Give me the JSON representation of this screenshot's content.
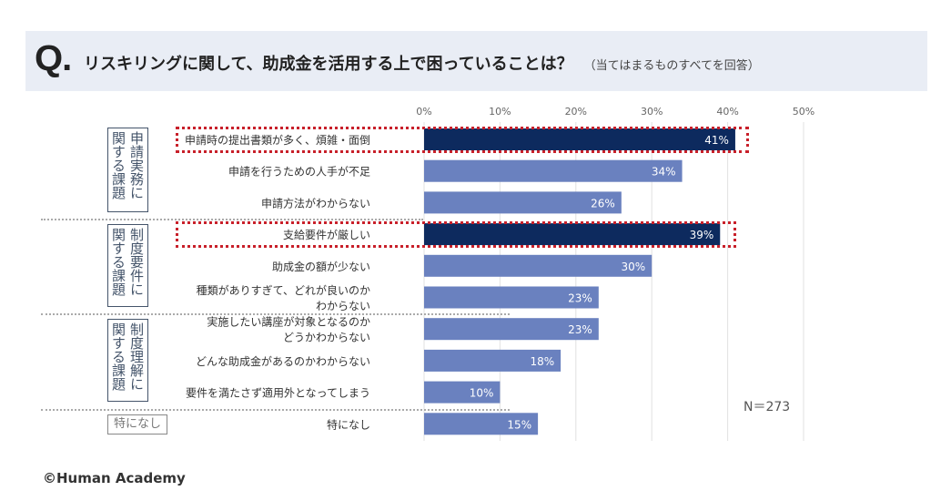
{
  "header": {
    "q_mark": "Q.",
    "title": "リスキリングに関して、助成金を活用する上で困っていることは？",
    "subtitle": "（当てはまるものすべてを回答）"
  },
  "groups": [
    {
      "label": "申請実務に関する課題"
    },
    {
      "label": "制度要件に関する課題"
    },
    {
      "label": "制度理解に関する課題"
    },
    {
      "label": "特になし"
    }
  ],
  "sample_size": "N＝273",
  "footer": "©Human Academy",
  "colors": {
    "highlight_bar": "#0d2a5e",
    "bar": "#6a81bf",
    "highlight_border": "#c8202a"
  },
  "chart_data": {
    "type": "bar",
    "orientation": "horizontal",
    "categories": [
      "申請時の提出書類が多く、煩雑・面倒",
      "申請を行うための人手が不足",
      "申請方法がわからない",
      "支給要件が厳しい",
      "助成金の額が少ない",
      "種類がありすぎて、どれが良いのか\nわからない",
      "実施したい講座が対象となるのか\nどうかわからない",
      "どんな助成金があるのかわからない",
      "要件を満たさず適用外となってしまう",
      "特になし"
    ],
    "values": [
      41,
      34,
      26,
      39,
      30,
      23,
      23,
      18,
      10,
      15
    ],
    "data_labels": [
      "41%",
      "34%",
      "26%",
      "39%",
      "30%",
      "23%",
      "23%",
      "18%",
      "10%",
      "15%"
    ],
    "highlighted": [
      0,
      3
    ],
    "xlim": [
      0,
      50
    ],
    "xticks": [
      "0%",
      "10%",
      "20%",
      "30%",
      "40%",
      "50%"
    ],
    "grid": true,
    "title": "",
    "xlabel": "",
    "ylabel": ""
  }
}
